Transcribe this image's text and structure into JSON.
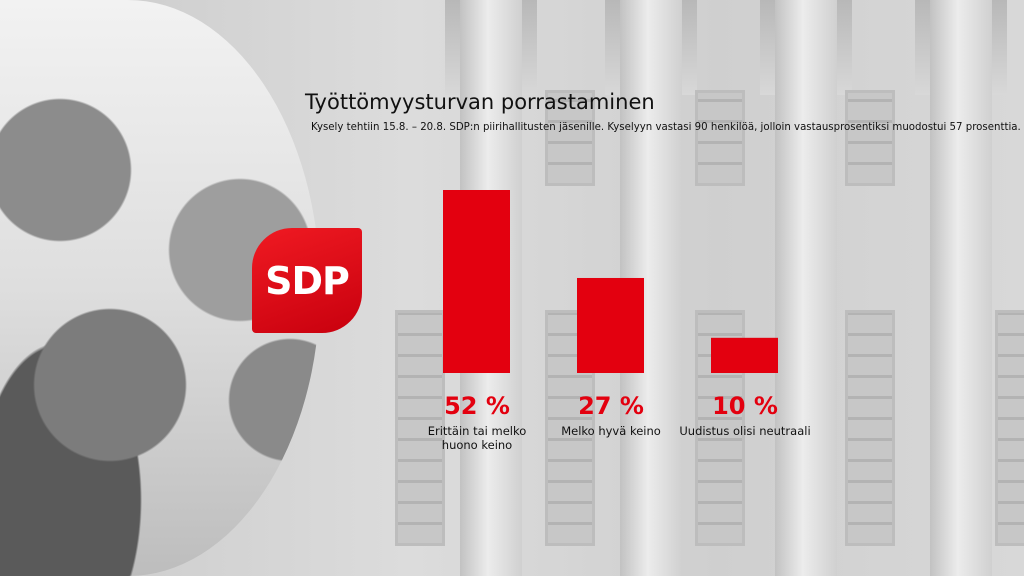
{
  "logo_text": "SDP",
  "colors": {
    "accent": "#e3000f"
  },
  "chart_data": {
    "type": "bar",
    "title": "Työttömyysturvan porrastaminen",
    "subtitle": "Kysely tehtiin 15.8. – 20.8. SDP:n piirihallitusten jäsenille. Kyselyyn vastasi 90 henkilöä, jolloin vastausprosentiksi muodostui 57 prosenttia.",
    "categories": [
      "Erittäin tai melko huono keino",
      "Melko hyvä keino",
      "Uudistus olisi neutraali"
    ],
    "values": [
      52,
      27,
      10
    ],
    "value_labels": [
      "52 %",
      "27 %",
      "10 %"
    ],
    "ylim": [
      0,
      52
    ],
    "grid": false,
    "xlabel": "",
    "ylabel": ""
  }
}
